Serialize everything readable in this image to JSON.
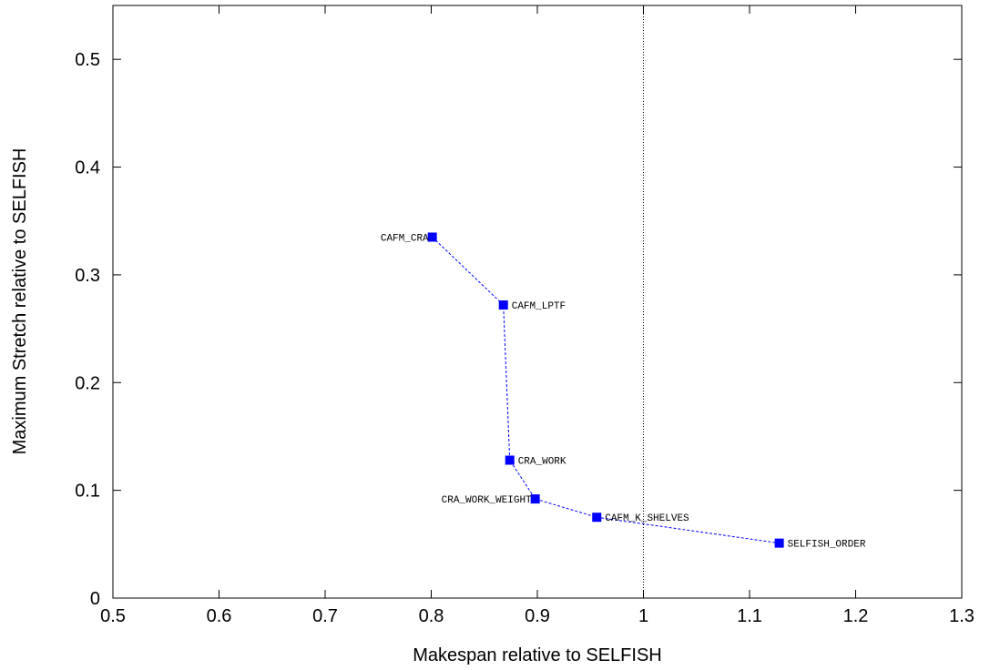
{
  "chart_data": {
    "type": "scatter",
    "title": "",
    "xlabel": "Makespan relative to SELFISH",
    "ylabel": "Maximum Stretch relative to SELFISH",
    "xlim": [
      0.5,
      1.3
    ],
    "ylim": [
      0,
      0.55
    ],
    "x_ticks": [
      0.5,
      0.6,
      0.7,
      0.8,
      0.9,
      1,
      1.1,
      1.2,
      1.3
    ],
    "x_tick_labels": [
      "0.5",
      "0.6",
      "0.7",
      "0.8",
      "0.9",
      "1",
      "1.1",
      "1.2",
      "1.3"
    ],
    "y_ticks": [
      0,
      0.1,
      0.2,
      0.3,
      0.4,
      0.5
    ],
    "y_tick_labels": [
      "0",
      "0.1",
      "0.2",
      "0.3",
      "0.4",
      "0.5"
    ],
    "grid": false,
    "reference_line": {
      "x": 1,
      "style": "dotted"
    },
    "connect_points": true,
    "colors": {
      "series": "#0000ff",
      "reference": "#000000"
    },
    "points": [
      {
        "label": "CAFM_CRA",
        "x": 0.801,
        "y": 0.335,
        "label_side": "left"
      },
      {
        "label": "CAFM_LPTF",
        "x": 0.868,
        "y": 0.272,
        "label_side": "right"
      },
      {
        "label": "CRA_WORK",
        "x": 0.874,
        "y": 0.128,
        "label_side": "right"
      },
      {
        "label": "CRA_WORK_WEIGHT",
        "x": 0.898,
        "y": 0.092,
        "label_side": "left"
      },
      {
        "label": "CAFM_K_SHELVES",
        "x": 0.956,
        "y": 0.075,
        "label_side": "right"
      },
      {
        "label": "SELFISH_ORDER",
        "x": 1.128,
        "y": 0.051,
        "label_side": "right"
      }
    ]
  }
}
